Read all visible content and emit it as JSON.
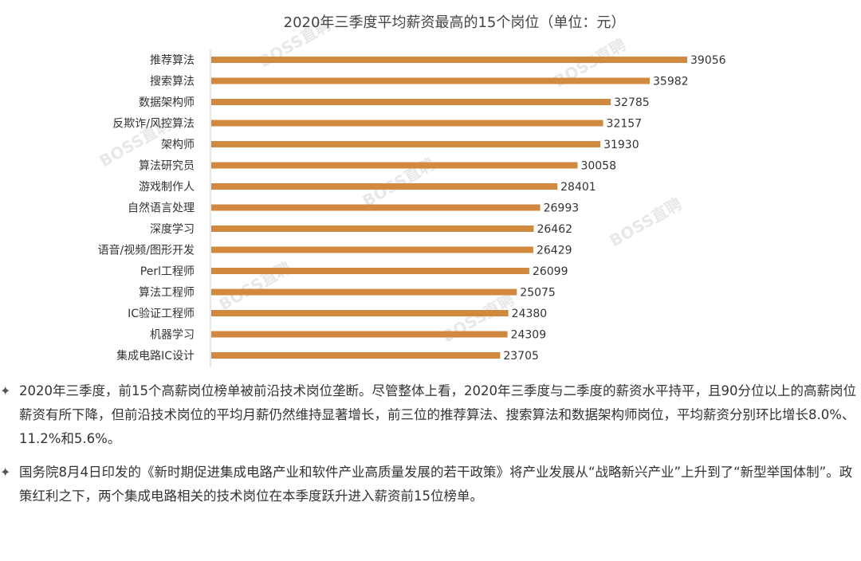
{
  "chart_data": {
    "type": "bar",
    "orientation": "horizontal",
    "title": "2020年三季度平均薪资最高的15个岗位（单位：元）",
    "categories": [
      "推荐算法",
      "搜索算法",
      "数据架构师",
      "反欺诈/风控算法",
      "架构师",
      "算法研究员",
      "游戏制作人",
      "自然语言处理",
      "深度学习",
      "语音/视频/图形开发",
      "Perl工程师",
      "算法工程师",
      "IC验证工程师",
      "机器学习",
      "集成电路IC设计"
    ],
    "values": [
      39056,
      35982,
      32785,
      32157,
      31930,
      30058,
      28401,
      26993,
      26462,
      26429,
      26099,
      25075,
      24380,
      24309,
      23705
    ],
    "xlim": [
      0,
      40000
    ],
    "bar_color": "#d0893f",
    "grid": false,
    "legend": "none",
    "watermark": "BOSS直聘"
  },
  "bullets": [
    {
      "icon": "four-point-star-icon",
      "text": "2020年三季度，前15个高薪岗位榜单被前沿技术岗位垄断。尽管整体上看，2020年三季度与二季度的薪资水平持平，且90分位以上的高薪岗位薪资有所下降，但前沿技术岗位的平均月薪仍然维持显著增长，前三位的推荐算法、搜索算法和数据架构师岗位，平均薪资分别环比增长8.0%、11.2%和5.6%。"
    },
    {
      "icon": "four-point-star-icon",
      "text": "国务院8月4日印发的《新时期促进集成电路产业和软件产业高质量发展的若干政策》将产业发展从“战略新兴产业”上升到了“新型举国体制”。政策红利之下，两个集成电路相关的技术岗位在本季度跃升进入薪资前15位榜单。"
    }
  ]
}
